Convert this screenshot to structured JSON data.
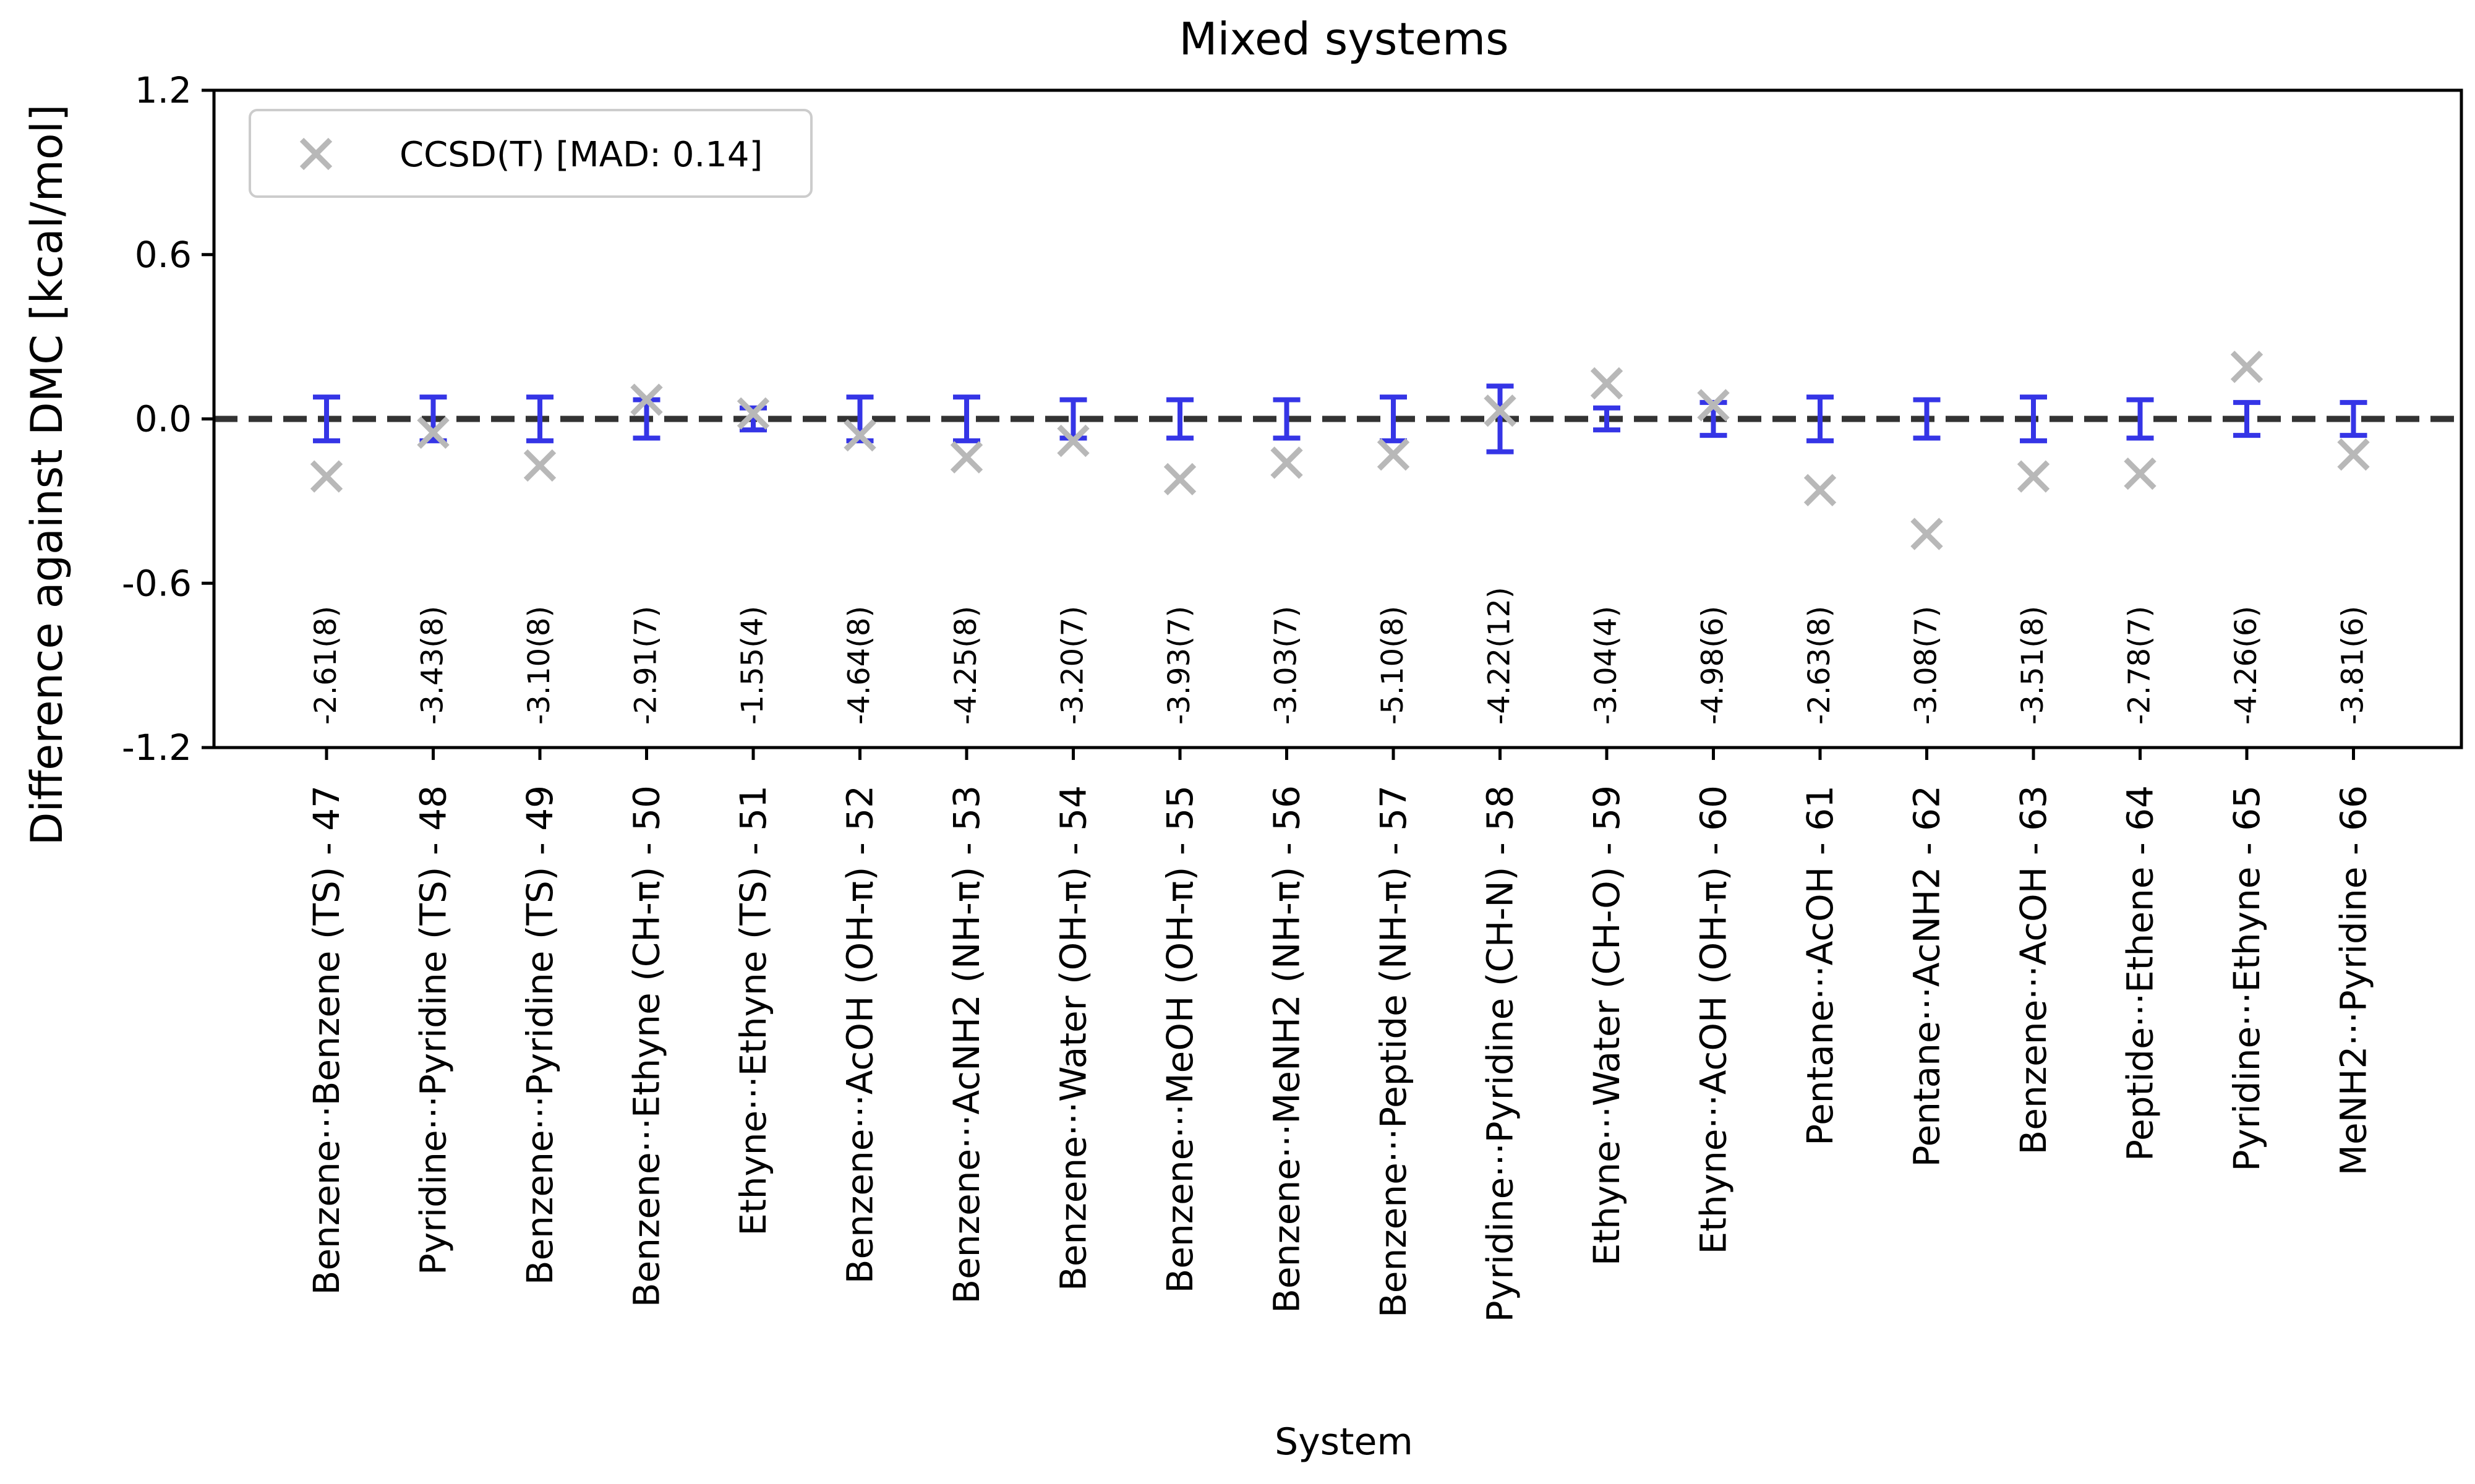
{
  "chart_data": {
    "type": "scatter",
    "title": "Mixed systems",
    "xlabel": "System",
    "ylabel": "Difference against DMC [kcal/mol]",
    "ylim": [
      -1.2,
      1.2
    ],
    "yticks": [
      "1.2",
      "0.6",
      "0.0",
      "-0.6",
      "-1.2"
    ],
    "grid": false,
    "legend_position": "top-left",
    "colors": {
      "ccsdt": "#b8b8b8",
      "errorbar": "#3535e6",
      "zero_line": "#333333"
    },
    "categories": [
      "Benzene···Benzene (TS) - 47",
      "Pyridine···Pyridine (TS) - 48",
      "Benzene···Pyridine (TS) - 49",
      "Benzene···Ethyne (CH-π) - 50",
      "Ethyne···Ethyne (TS) - 51",
      "Benzene···AcOH (OH-π) - 52",
      "Benzene···AcNH2 (NH-π) - 53",
      "Benzene···Water (OH-π) - 54",
      "Benzene···MeOH (OH-π) - 55",
      "Benzene···MeNH2 (NH-π) - 56",
      "Benzene···Peptide (NH-π) - 57",
      "Pyridine···Pyridine (CH-N) - 58",
      "Ethyne···Water (CH-O) - 59",
      "Ethyne···AcOH (OH-π) - 60",
      "Pentane···AcOH - 61",
      "Pentane···AcNH2 - 62",
      "Benzene···AcOH - 63",
      "Peptide···Ethene - 64",
      "Pyridine···Ethyne - 65",
      "MeNH2···Pyridine - 66"
    ],
    "dmc_labels": [
      "-2.61(8)",
      "-3.43(8)",
      "-3.10(8)",
      "-2.91(7)",
      "-1.55(4)",
      "-4.64(8)",
      "-4.25(8)",
      "-3.20(7)",
      "-3.93(7)",
      "-3.03(7)",
      "-5.10(8)",
      "-4.22(12)",
      "-3.04(4)",
      "-4.98(6)",
      "-2.63(8)",
      "-3.08(7)",
      "-3.51(8)",
      "-2.78(7)",
      "-4.26(6)",
      "-3.81(6)"
    ],
    "dmc_error": [
      0.08,
      0.08,
      0.08,
      0.07,
      0.04,
      0.08,
      0.08,
      0.07,
      0.07,
      0.07,
      0.08,
      0.12,
      0.04,
      0.06,
      0.08,
      0.07,
      0.08,
      0.07,
      0.06,
      0.06
    ],
    "series": [
      {
        "name": "CCSD(T) [MAD: 0.14]",
        "marker": "x",
        "values": [
          -0.21,
          -0.05,
          -0.17,
          0.07,
          0.02,
          -0.06,
          -0.14,
          -0.08,
          -0.22,
          -0.16,
          -0.13,
          0.03,
          0.13,
          0.05,
          -0.26,
          -0.42,
          -0.21,
          -0.2,
          0.19,
          -0.13
        ]
      }
    ]
  }
}
